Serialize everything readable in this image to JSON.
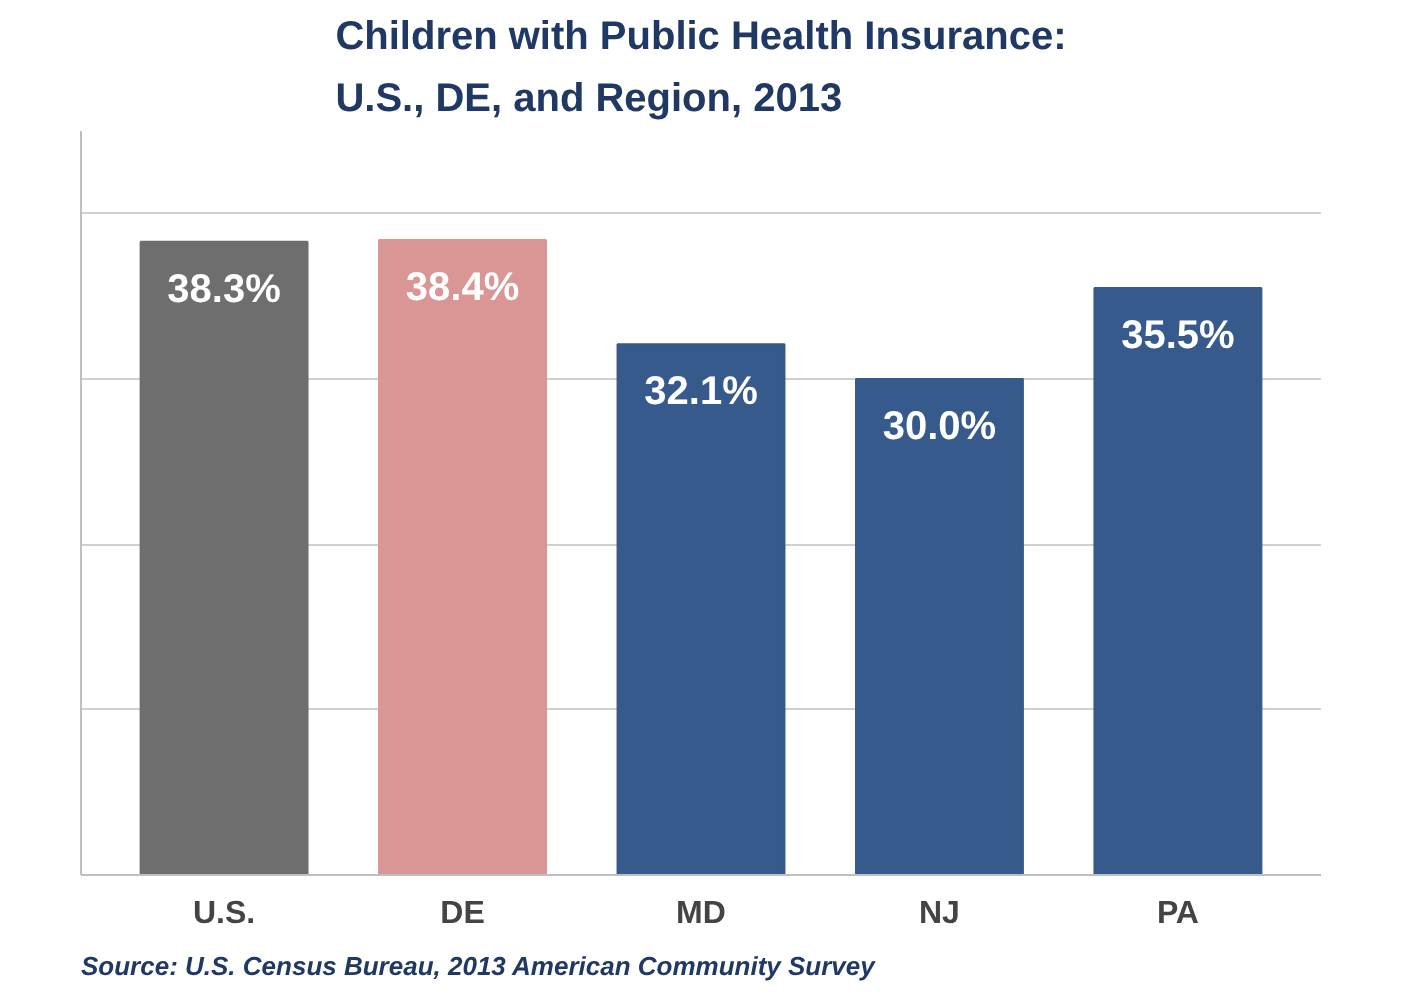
{
  "chart_data": {
    "type": "bar",
    "title": "Children with Public Health Insurance:\nU.S., DE, and Region, 2013",
    "categories": [
      "U.S.",
      "DE",
      "MD",
      "NJ",
      "PA"
    ],
    "values": [
      38.3,
      38.4,
      32.1,
      30.0,
      35.5
    ],
    "value_labels": [
      "38.3%",
      "38.4%",
      "32.1%",
      "30.0%",
      "35.5%"
    ],
    "colors": [
      "#6e6e6e",
      "#d99694",
      "#375a8c",
      "#375a8c",
      "#375a8c"
    ],
    "ylim": [
      0,
      45
    ],
    "yticks": [
      {
        "value": 0,
        "label": null
      },
      {
        "value": 10,
        "label": null
      },
      {
        "value": 20,
        "label": null
      },
      {
        "value": 30,
        "label": null
      },
      {
        "value": 40,
        "label": null
      }
    ],
    "tick_labels": "x",
    "grid": "y",
    "annotations": [
      "Source: U.S. Census Bureau, 2013 American Community Survey"
    ]
  }
}
